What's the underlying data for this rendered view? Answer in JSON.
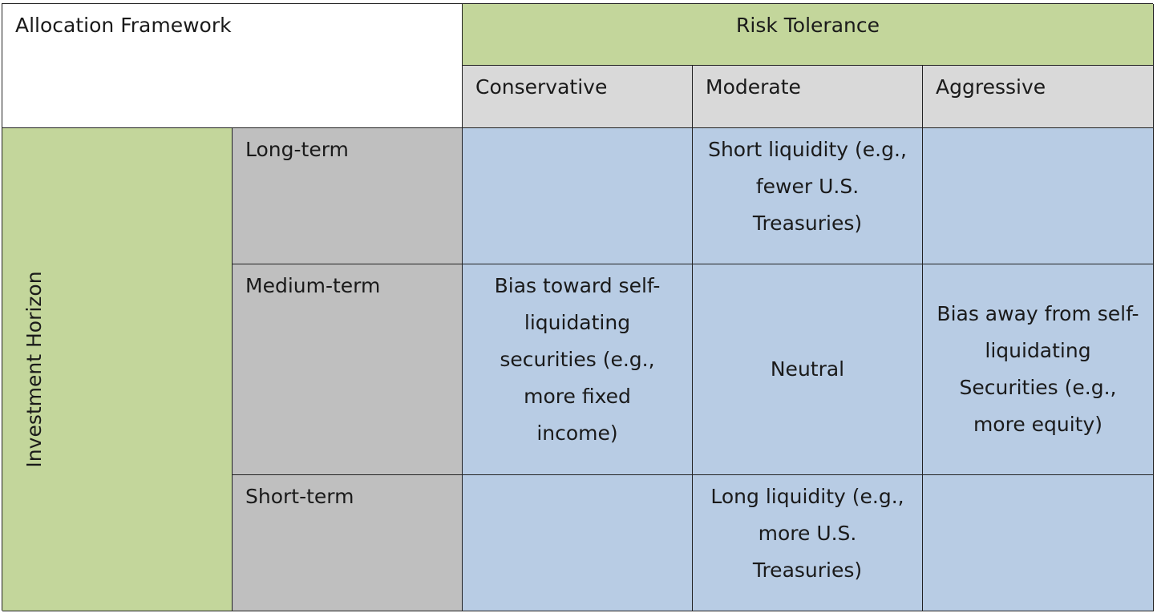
{
  "table": {
    "title": "Allocation Framework",
    "column_group_label": "Risk Tolerance",
    "columns": [
      "Conservative",
      "Moderate",
      "Aggressive"
    ],
    "row_group_label": "Investment Horizon",
    "rows": [
      {
        "label": "Long-term",
        "cells": [
          "",
          "Short liquidity (e.g., fewer U.S. Treasuries)",
          ""
        ]
      },
      {
        "label": "Medium-term",
        "cells": [
          "Bias toward self-liquidating securities (e.g., more fixed income)",
          "Neutral",
          "Bias away from self-liquidating Securities (e.g., more equity)"
        ]
      },
      {
        "label": "Short-term",
        "cells": [
          "",
          "Long liquidity (e.g., more U.S. Treasuries)",
          ""
        ]
      }
    ]
  },
  "colors": {
    "header_green": "#c3d69b",
    "column_header_gray": "#d9d9d9",
    "row_label_gray": "#bfbfbf",
    "cell_blue": "#b8cce4"
  }
}
